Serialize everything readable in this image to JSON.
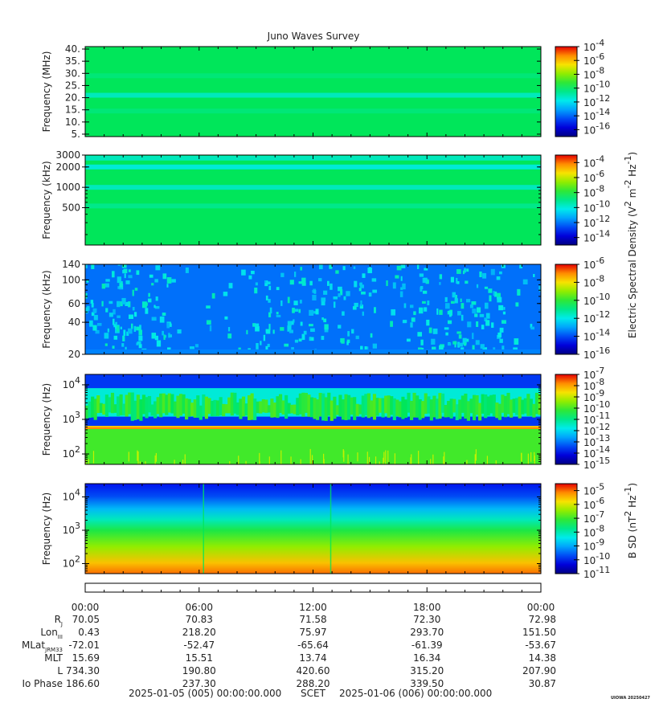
{
  "chart_data": {
    "title": "Juno Waves Survey",
    "type": "heatmap",
    "panels": [
      {
        "id": "p1",
        "ylabel": "Frequency (MHz)",
        "yscale": "linear",
        "ylim": [
          4,
          41
        ],
        "yticks": [
          {
            "v": 5,
            "label": "5."
          },
          {
            "v": 10,
            "label": "10."
          },
          {
            "v": 15,
            "label": "15."
          },
          {
            "v": 20,
            "label": "20."
          },
          {
            "v": 25,
            "label": "25."
          },
          {
            "v": 30,
            "label": "30."
          },
          {
            "v": 35,
            "label": "35."
          },
          {
            "v": 40,
            "label": "40."
          }
        ],
        "bands": [
          {
            "freq": 21.0,
            "level": 0.45
          },
          {
            "freq": 29.0,
            "level": 0.52
          },
          {
            "freq": 14.5,
            "level": 0.52
          }
        ],
        "base_level": 0.55,
        "cbar_ticks": [
          {
            "exp": "-4",
            "label": "10"
          },
          {
            "exp": "-6",
            "label": "10"
          },
          {
            "exp": "-8",
            "label": "10"
          },
          {
            "exp": "-10",
            "label": "10"
          },
          {
            "exp": "-12",
            "label": "10"
          },
          {
            "exp": "-14",
            "label": "10"
          },
          {
            "exp": "-16",
            "label": "10"
          }
        ],
        "cbar_range": [
          -17,
          -4
        ]
      },
      {
        "id": "p2",
        "ylabel": "Frequency (kHz)",
        "yscale": "log",
        "ylim": [
          140,
          3000
        ],
        "yticks": [
          {
            "v": 500,
            "label": "500"
          },
          {
            "v": 1000,
            "label": "1000"
          },
          {
            "v": 2000,
            "label": "2000"
          },
          {
            "v": 3000,
            "label": "3000"
          }
        ],
        "bands": [
          {
            "freq": 2700,
            "level": 0.45
          },
          {
            "freq": 2000,
            "level": 0.42
          },
          {
            "freq": 1000,
            "level": 0.45
          },
          {
            "freq": 530,
            "level": 0.5
          }
        ],
        "base_level": 0.55,
        "cbar_ticks": [
          {
            "exp": "-4",
            "label": "10"
          },
          {
            "exp": "-6",
            "label": "10"
          },
          {
            "exp": "-8",
            "label": "10"
          },
          {
            "exp": "-10",
            "label": "10"
          },
          {
            "exp": "-12",
            "label": "10"
          },
          {
            "exp": "-14",
            "label": "10"
          }
        ],
        "cbar_range": [
          -15,
          -3
        ]
      },
      {
        "id": "p3",
        "ylabel": "Frequency (kHz)",
        "yscale": "log",
        "ylim": [
          20,
          140
        ],
        "yticks": [
          {
            "v": 20,
            "label": "20"
          },
          {
            "v": 40,
            "label": "40"
          },
          {
            "v": 60,
            "label": "60"
          },
          {
            "v": 100,
            "label": "100"
          },
          {
            "v": 140,
            "label": "140"
          }
        ],
        "base_level": 0.72,
        "cbar_ticks": [
          {
            "exp": "-6",
            "label": "10"
          },
          {
            "exp": "-8",
            "label": "10"
          },
          {
            "exp": "-10",
            "label": "10"
          },
          {
            "exp": "-12",
            "label": "10"
          },
          {
            "exp": "-14",
            "label": "10"
          },
          {
            "exp": "-16",
            "label": "10"
          }
        ],
        "cbar_range": [
          -16,
          -6
        ]
      },
      {
        "id": "p4",
        "ylabel": "Frequency (Hz)",
        "yscale": "log",
        "ylim": [
          50,
          20000
        ],
        "yticks": [
          {
            "v": 100,
            "exp": "2",
            "label": "10"
          },
          {
            "v": 1000,
            "exp": "3",
            "label": "10"
          },
          {
            "v": 10000,
            "exp": "4",
            "label": "10"
          }
        ],
        "line_freq": 600,
        "cbar_ticks": [
          {
            "exp": "-7",
            "label": "10"
          },
          {
            "exp": "-8",
            "label": "10"
          },
          {
            "exp": "-9",
            "label": "10"
          },
          {
            "exp": "-10",
            "label": "10"
          },
          {
            "exp": "-11",
            "label": "10"
          },
          {
            "exp": "-12",
            "label": "10"
          },
          {
            "exp": "-13",
            "label": "10"
          },
          {
            "exp": "-14",
            "label": "10"
          },
          {
            "exp": "-15",
            "label": "10"
          }
        ],
        "cbar_range": [
          -15,
          -7
        ]
      },
      {
        "id": "p5",
        "ylabel": "Frequency (Hz)",
        "yscale": "log",
        "ylim": [
          50,
          25000
        ],
        "yticks": [
          {
            "v": 100,
            "exp": "2",
            "label": "10"
          },
          {
            "v": 1000,
            "exp": "3",
            "label": "10"
          },
          {
            "v": 10000,
            "exp": "4",
            "label": "10"
          }
        ],
        "spike_hours": [
          6.2,
          12.9
        ],
        "cbar_ticks": [
          {
            "exp": "-5",
            "label": "10"
          },
          {
            "exp": "-6",
            "label": "10"
          },
          {
            "exp": "-7",
            "label": "10"
          },
          {
            "exp": "-8",
            "label": "10"
          },
          {
            "exp": "-9",
            "label": "10"
          },
          {
            "exp": "-10",
            "label": "10"
          },
          {
            "exp": "-11",
            "label": "10"
          }
        ],
        "cbar_range": [
          -11,
          -4.5
        ]
      }
    ],
    "electric_cbar_label": {
      "base": "Electric Spectral Density (V",
      "exp1": "2",
      "mid": " m",
      "exp2": "-2",
      "mid2": " Hz",
      "exp3": "-1",
      "end": ")"
    },
    "magnetic_cbar_label": {
      "base": "B SD (nT",
      "exp1": "2",
      "mid": " Hz",
      "exp2": "-1",
      "end": ")"
    },
    "x_hours": [
      0,
      6,
      12,
      18,
      24
    ],
    "x_tick_labels": [
      "00:00",
      "06:00",
      "12:00",
      "18:00",
      "00:00"
    ],
    "ephemeris": [
      {
        "label": "R",
        "sub": "J",
        "values": [
          "70.05",
          "70.83",
          "71.58",
          "72.30",
          "72.98"
        ]
      },
      {
        "label": "Lon",
        "sub": "III",
        "values": [
          "0.43",
          "218.20",
          "75.97",
          "293.70",
          "151.50"
        ]
      },
      {
        "label": "MLat",
        "sub": "JRM33",
        "values": [
          "-72.01",
          "-52.47",
          "-65.64",
          "-61.39",
          "-53.67"
        ]
      },
      {
        "label": "MLT",
        "sub": "",
        "values": [
          "15.69",
          "15.51",
          "13.74",
          "16.34",
          "14.38"
        ]
      },
      {
        "label": "L",
        "sub": "",
        "values": [
          "734.30",
          "190.80",
          "420.60",
          "315.20",
          "207.90"
        ]
      },
      {
        "label": "Io Phase",
        "sub": "",
        "values": [
          "186.60",
          "237.30",
          "288.20",
          "339.50",
          "30.87"
        ]
      }
    ],
    "time_range": {
      "start": "2025-01-05 (005) 00:00:00.000",
      "label": "SCET",
      "end": "2025-01-06 (006) 00:00:00.000"
    },
    "stamp": "UIOWA 20250427"
  }
}
